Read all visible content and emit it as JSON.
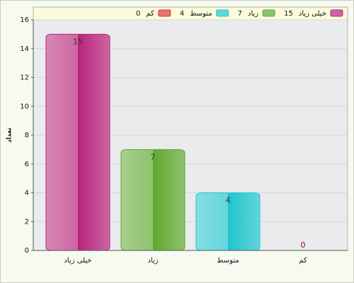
{
  "chart_data": {
    "type": "bar",
    "y_label": "تعداد",
    "categories": [
      "خیلی زیاد",
      "زیاد",
      "متوسط",
      "کم"
    ],
    "values": [
      15,
      7,
      4,
      0
    ],
    "colors": [
      "#b8247a",
      "#5fa82e",
      "#1fc4cc",
      "#e03434"
    ],
    "ylim": [
      0,
      16
    ],
    "yticks": [
      0,
      2,
      4,
      6,
      8,
      10,
      12,
      14,
      16
    ],
    "grid": true
  }
}
